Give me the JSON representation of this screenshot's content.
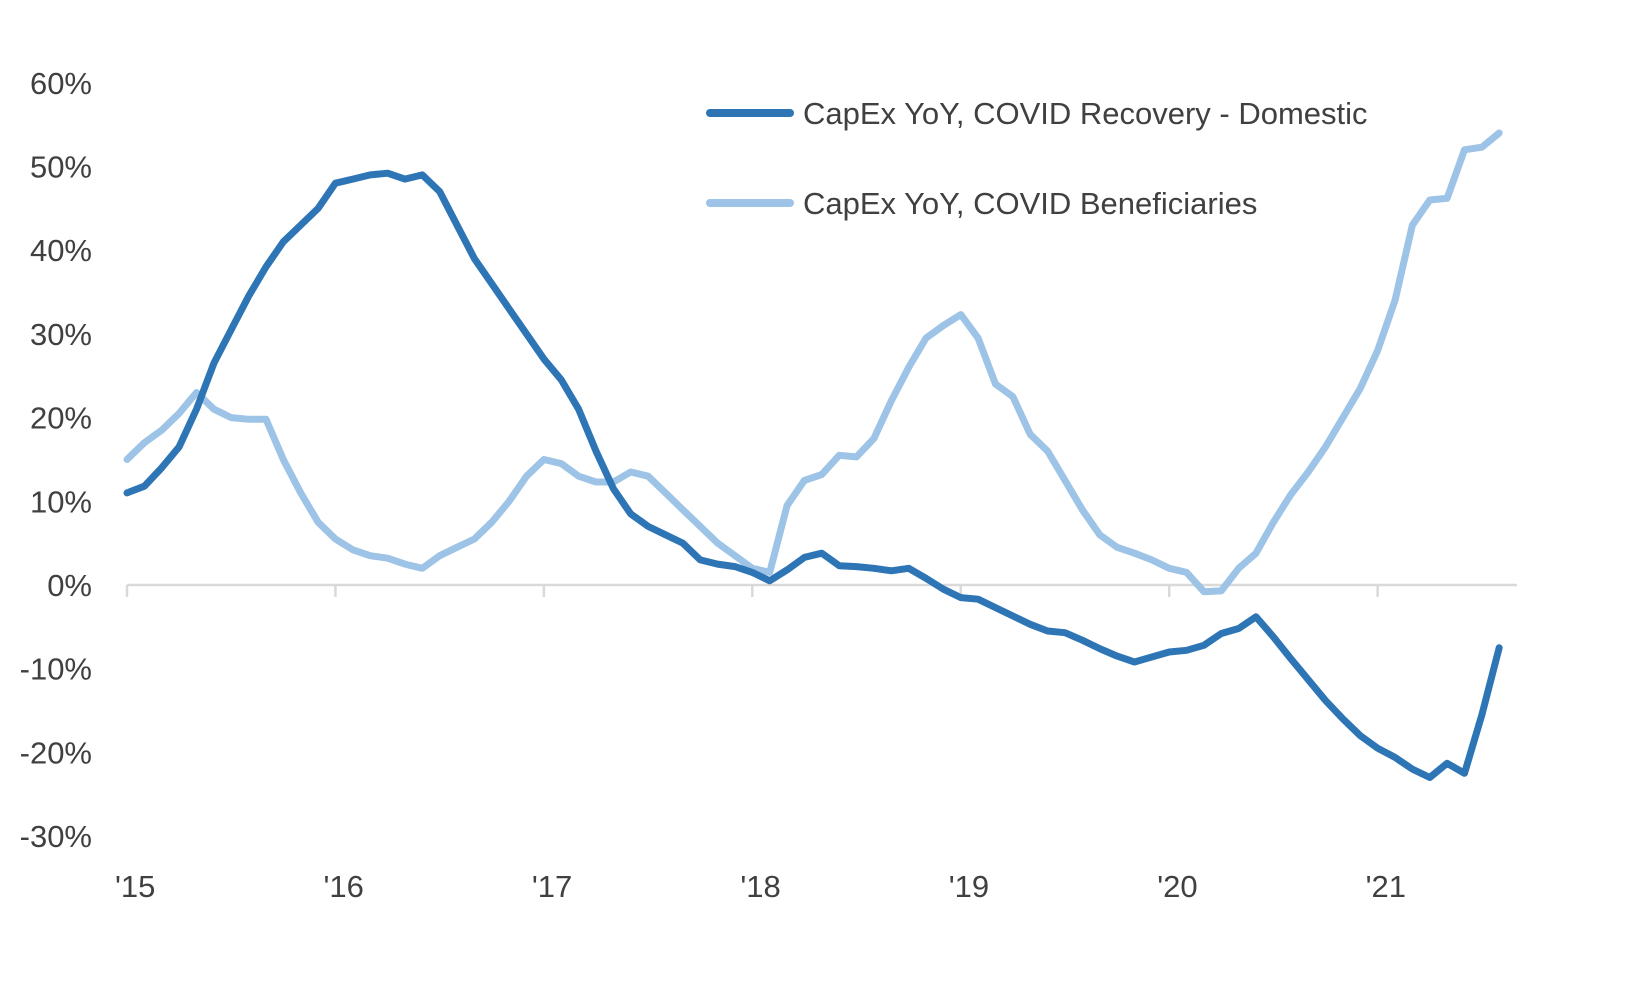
{
  "chart_data": {
    "type": "line",
    "title": "",
    "xlabel": "",
    "ylabel": "",
    "ylim": [
      -30,
      60
    ],
    "yticks": [
      60,
      50,
      40,
      30,
      20,
      10,
      0,
      -10,
      -20,
      -30
    ],
    "ytick_labels": [
      "60%",
      "50%",
      "40%",
      "30%",
      "20%",
      "10%",
      "0%",
      "-10%",
      "-20%",
      "-30%"
    ],
    "xtick_labels": [
      "'15",
      "'16",
      "'17",
      "'18",
      "'19",
      "'20",
      "'21"
    ],
    "x_unit": "months since Jan 2015",
    "legend_position": "top-right",
    "grid": false,
    "series": [
      {
        "name": "CapEx YoY, COVID Recovery - Domestic",
        "color": "#2E75B6",
        "values": [
          11,
          11.8,
          14,
          16.5,
          21,
          26.5,
          30.5,
          34.5,
          38,
          41,
          43,
          45,
          48,
          48.5,
          49,
          49.2,
          48.5,
          49,
          47,
          43,
          39,
          36,
          33,
          30,
          27,
          24.5,
          21,
          16,
          11.5,
          8.5,
          7,
          6,
          5,
          3,
          2.5,
          2.2,
          1.5,
          0.5,
          1.8,
          3.3,
          3.8,
          2.3,
          2.2,
          2,
          1.7,
          2,
          0.8,
          -0.5,
          -1.5,
          -1.7,
          -2.7,
          -3.7,
          -4.7,
          -5.5,
          -5.7,
          -6.6,
          -7.6,
          -8.5,
          -9.2,
          -8.6,
          -8.0,
          -7.8,
          -7.2,
          -5.8,
          -5.2,
          -3.8,
          -6.2,
          -8.8,
          -11.3,
          -13.8,
          -16,
          -18,
          -19.5,
          -20.6,
          -22,
          -23,
          -21.3,
          -22.5,
          -15.5,
          -7.5
        ]
      },
      {
        "name": "CapEx YoY, COVID Beneficiaries",
        "color": "#9DC3E6",
        "values": [
          15,
          17,
          18.5,
          20.5,
          23,
          21,
          20,
          19.8,
          19.8,
          15,
          11,
          7.5,
          5.5,
          4.2,
          3.5,
          3.2,
          2.5,
          2,
          3.5,
          4.5,
          5.5,
          7.5,
          10,
          13,
          15,
          14.5,
          13,
          12.3,
          12.3,
          13.5,
          13,
          11,
          9,
          7,
          5,
          3.5,
          2,
          1.5,
          9.5,
          12.5,
          13.2,
          15.5,
          15.3,
          17.5,
          22,
          26,
          29.5,
          31,
          32.3,
          29.5,
          24,
          22.5,
          18,
          16,
          12.5,
          9,
          6,
          4.5,
          3.8,
          3,
          2,
          1.5,
          -0.8,
          -0.7,
          2,
          3.8,
          7.5,
          10.8,
          13.5,
          16.5,
          20,
          23.5,
          28,
          34,
          43,
          46,
          46.2,
          52,
          52.3,
          54
        ]
      }
    ]
  }
}
